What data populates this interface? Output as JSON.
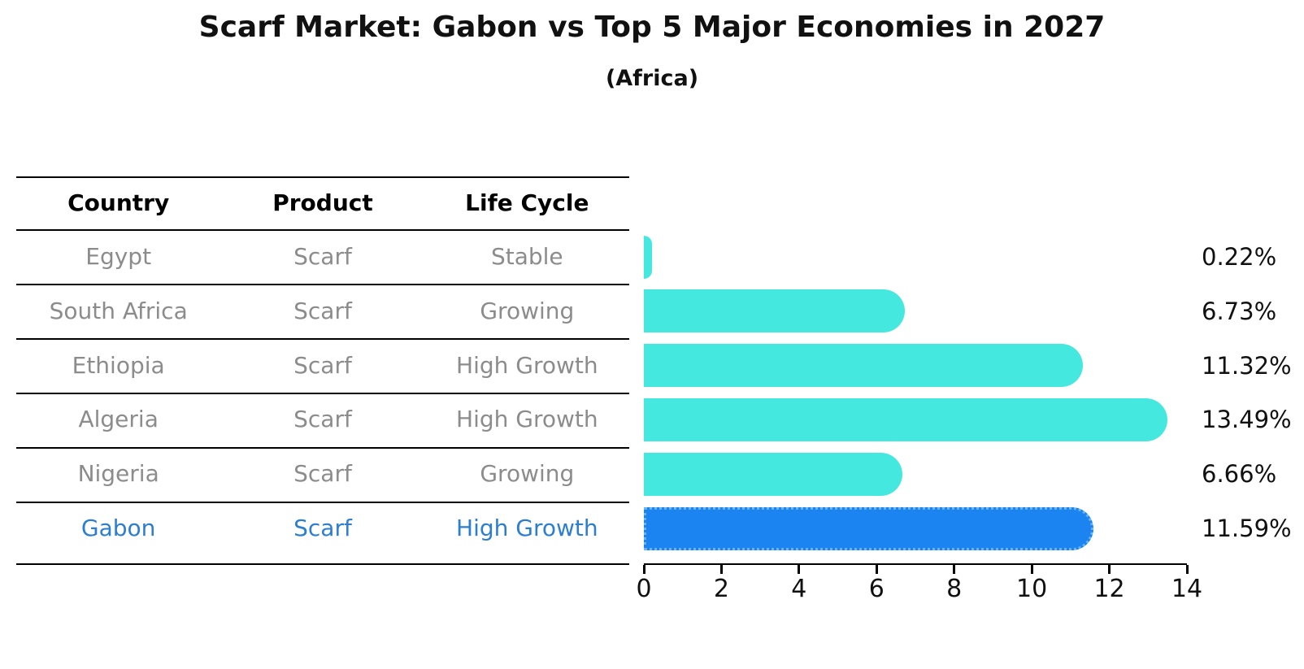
{
  "title": "Scarf Market: Gabon vs Top 5 Major Economies in 2027",
  "subtitle": "(Africa)",
  "table": {
    "headers": [
      "Country",
      "Product",
      "Life Cycle"
    ]
  },
  "rows": [
    {
      "country": "Egypt",
      "product": "Scarf",
      "life_cycle": "Stable",
      "value": 0.22,
      "value_label": "0.22%",
      "highlight": false
    },
    {
      "country": "South Africa",
      "product": "Scarf",
      "life_cycle": "Growing",
      "value": 6.73,
      "value_label": "6.73%",
      "highlight": false
    },
    {
      "country": "Ethiopia",
      "product": "Scarf",
      "life_cycle": "High Growth",
      "value": 11.32,
      "value_label": "11.32%",
      "highlight": false
    },
    {
      "country": "Algeria",
      "product": "Scarf",
      "life_cycle": "High Growth",
      "value": 13.49,
      "value_label": "13.49%",
      "highlight": false
    },
    {
      "country": "Nigeria",
      "product": "Scarf",
      "life_cycle": "Growing",
      "value": 6.66,
      "value_label": "6.66%",
      "highlight": false
    },
    {
      "country": "Gabon",
      "product": "Scarf",
      "life_cycle": "High Growth",
      "value": 11.59,
      "value_label": "11.59%",
      "highlight": true
    }
  ],
  "chart_data": {
    "type": "bar",
    "orientation": "horizontal",
    "title": "Scarf Market: Gabon vs Top 5 Major Economies in 2027",
    "subtitle": "(Africa)",
    "categories": [
      "Egypt",
      "South Africa",
      "Ethiopia",
      "Algeria",
      "Nigeria",
      "Gabon"
    ],
    "values": [
      0.22,
      6.73,
      11.32,
      13.49,
      6.66,
      11.59
    ],
    "value_labels": [
      "0.22%",
      "6.73%",
      "11.32%",
      "13.49%",
      "6.66%",
      "11.59%"
    ],
    "xlabel": "",
    "ylabel": "",
    "xlim": [
      0,
      14
    ],
    "x_ticks": [
      0,
      2,
      4,
      6,
      8,
      10,
      12,
      14
    ],
    "grid": false,
    "legend": false,
    "highlight_category": "Gabon"
  },
  "colors": {
    "bar": "#45e8de",
    "highlight_bar": "#1b84f0",
    "highlight_border": "#69b3f7",
    "highlight_text": "#2b7ed2",
    "row_text": "#8c8c8c",
    "header_text": "#111111",
    "axis": "#000000"
  }
}
